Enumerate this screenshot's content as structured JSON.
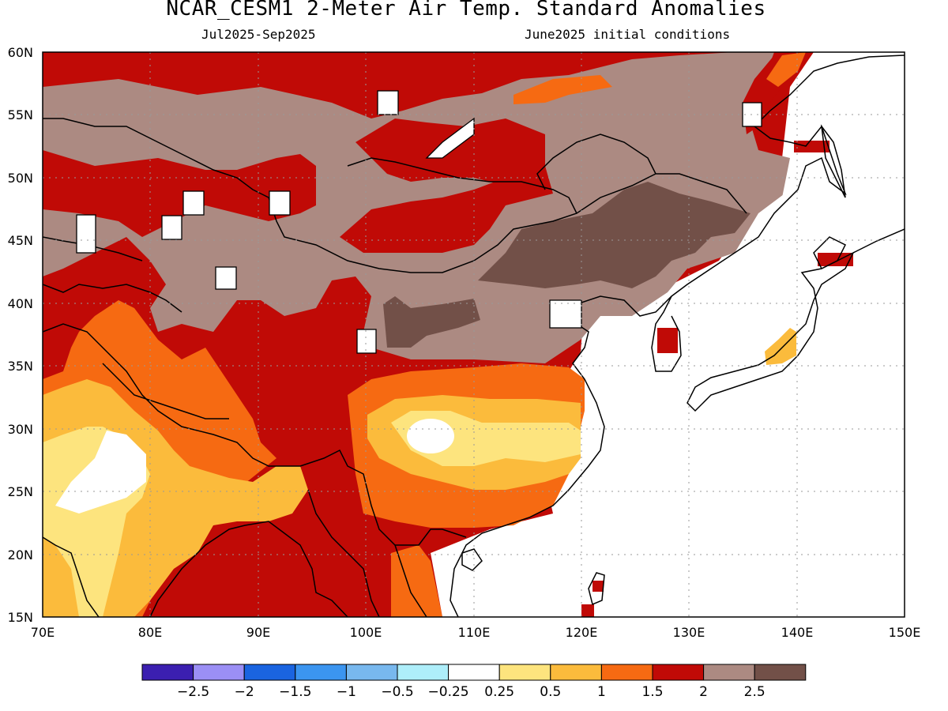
{
  "title": "NCAR_CESM1 2-Meter Air Temp. Standard Anomalies",
  "subtitle_period": "Jul2025-Sep2025",
  "subtitle_init": "June2025 initial conditions",
  "axes": {
    "lon_labels": [
      "70E",
      "80E",
      "90E",
      "100E",
      "110E",
      "120E",
      "130E",
      "140E",
      "150E"
    ],
    "lat_labels": [
      "60N",
      "55N",
      "50N",
      "45N",
      "40N",
      "35N",
      "30N",
      "25N",
      "20N",
      "15N"
    ],
    "lon_range": [
      70,
      150
    ],
    "lat_range": [
      15,
      60
    ],
    "grid": "dotted"
  },
  "colorbar": {
    "colors": [
      "#3b1fb0",
      "#9b8ff5",
      "#1a64e0",
      "#3b95f0",
      "#78b8ee",
      "#aeeefa",
      "#ffffff",
      "#fde47e",
      "#fbbb3c",
      "#f66a12",
      "#c00a06",
      "#ac8a82",
      "#725048"
    ],
    "labels": [
      "-2.5",
      "-2",
      "-1.5",
      "-1",
      "-0.5",
      "-0.25",
      "0.25",
      "0.5",
      "1",
      "1.5",
      "2",
      "2.5"
    ]
  }
}
